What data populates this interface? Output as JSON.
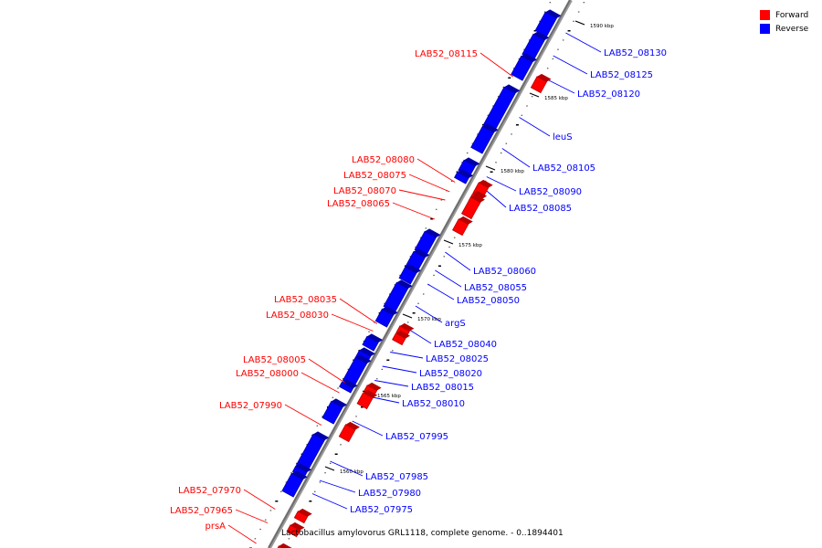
{
  "legend": {
    "forward_label": "Forward",
    "reverse_label": "Reverse",
    "forward_color": "#ff0000",
    "reverse_color": "#0000ff"
  },
  "caption": "Lactobacillus amylovorus GRL1118, complete genome. - 0..1894401",
  "tick_labels": [
    "1590 kbp",
    "1585 kbp",
    "1580 kbp",
    "1575 kbp",
    "1570 kbp",
    "1565 kbp",
    "1560 kbp"
  ],
  "forward_genes": [
    "LAB52_08115",
    "LAB52_08080",
    "LAB52_08075",
    "LAB52_08070",
    "LAB52_08065",
    "LAB52_08035",
    "LAB52_08030",
    "LAB52_08005",
    "LAB52_08000",
    "LAB52_07990",
    "LAB52_07970",
    "LAB52_07965",
    "prsA"
  ],
  "reverse_genes": [
    "LAB52_08130",
    "LAB52_08125",
    "LAB52_08120",
    "leuS",
    "LAB52_08105",
    "LAB52_08090",
    "LAB52_08085",
    "LAB52_08060",
    "LAB52_08055",
    "LAB52_08050",
    "argS",
    "LAB52_08040",
    "LAB52_08025",
    "LAB52_08020",
    "LAB52_08015",
    "LAB52_08010",
    "LAB52_07995",
    "LAB52_07985",
    "LAB52_07980",
    "LAB52_07975"
  ]
}
